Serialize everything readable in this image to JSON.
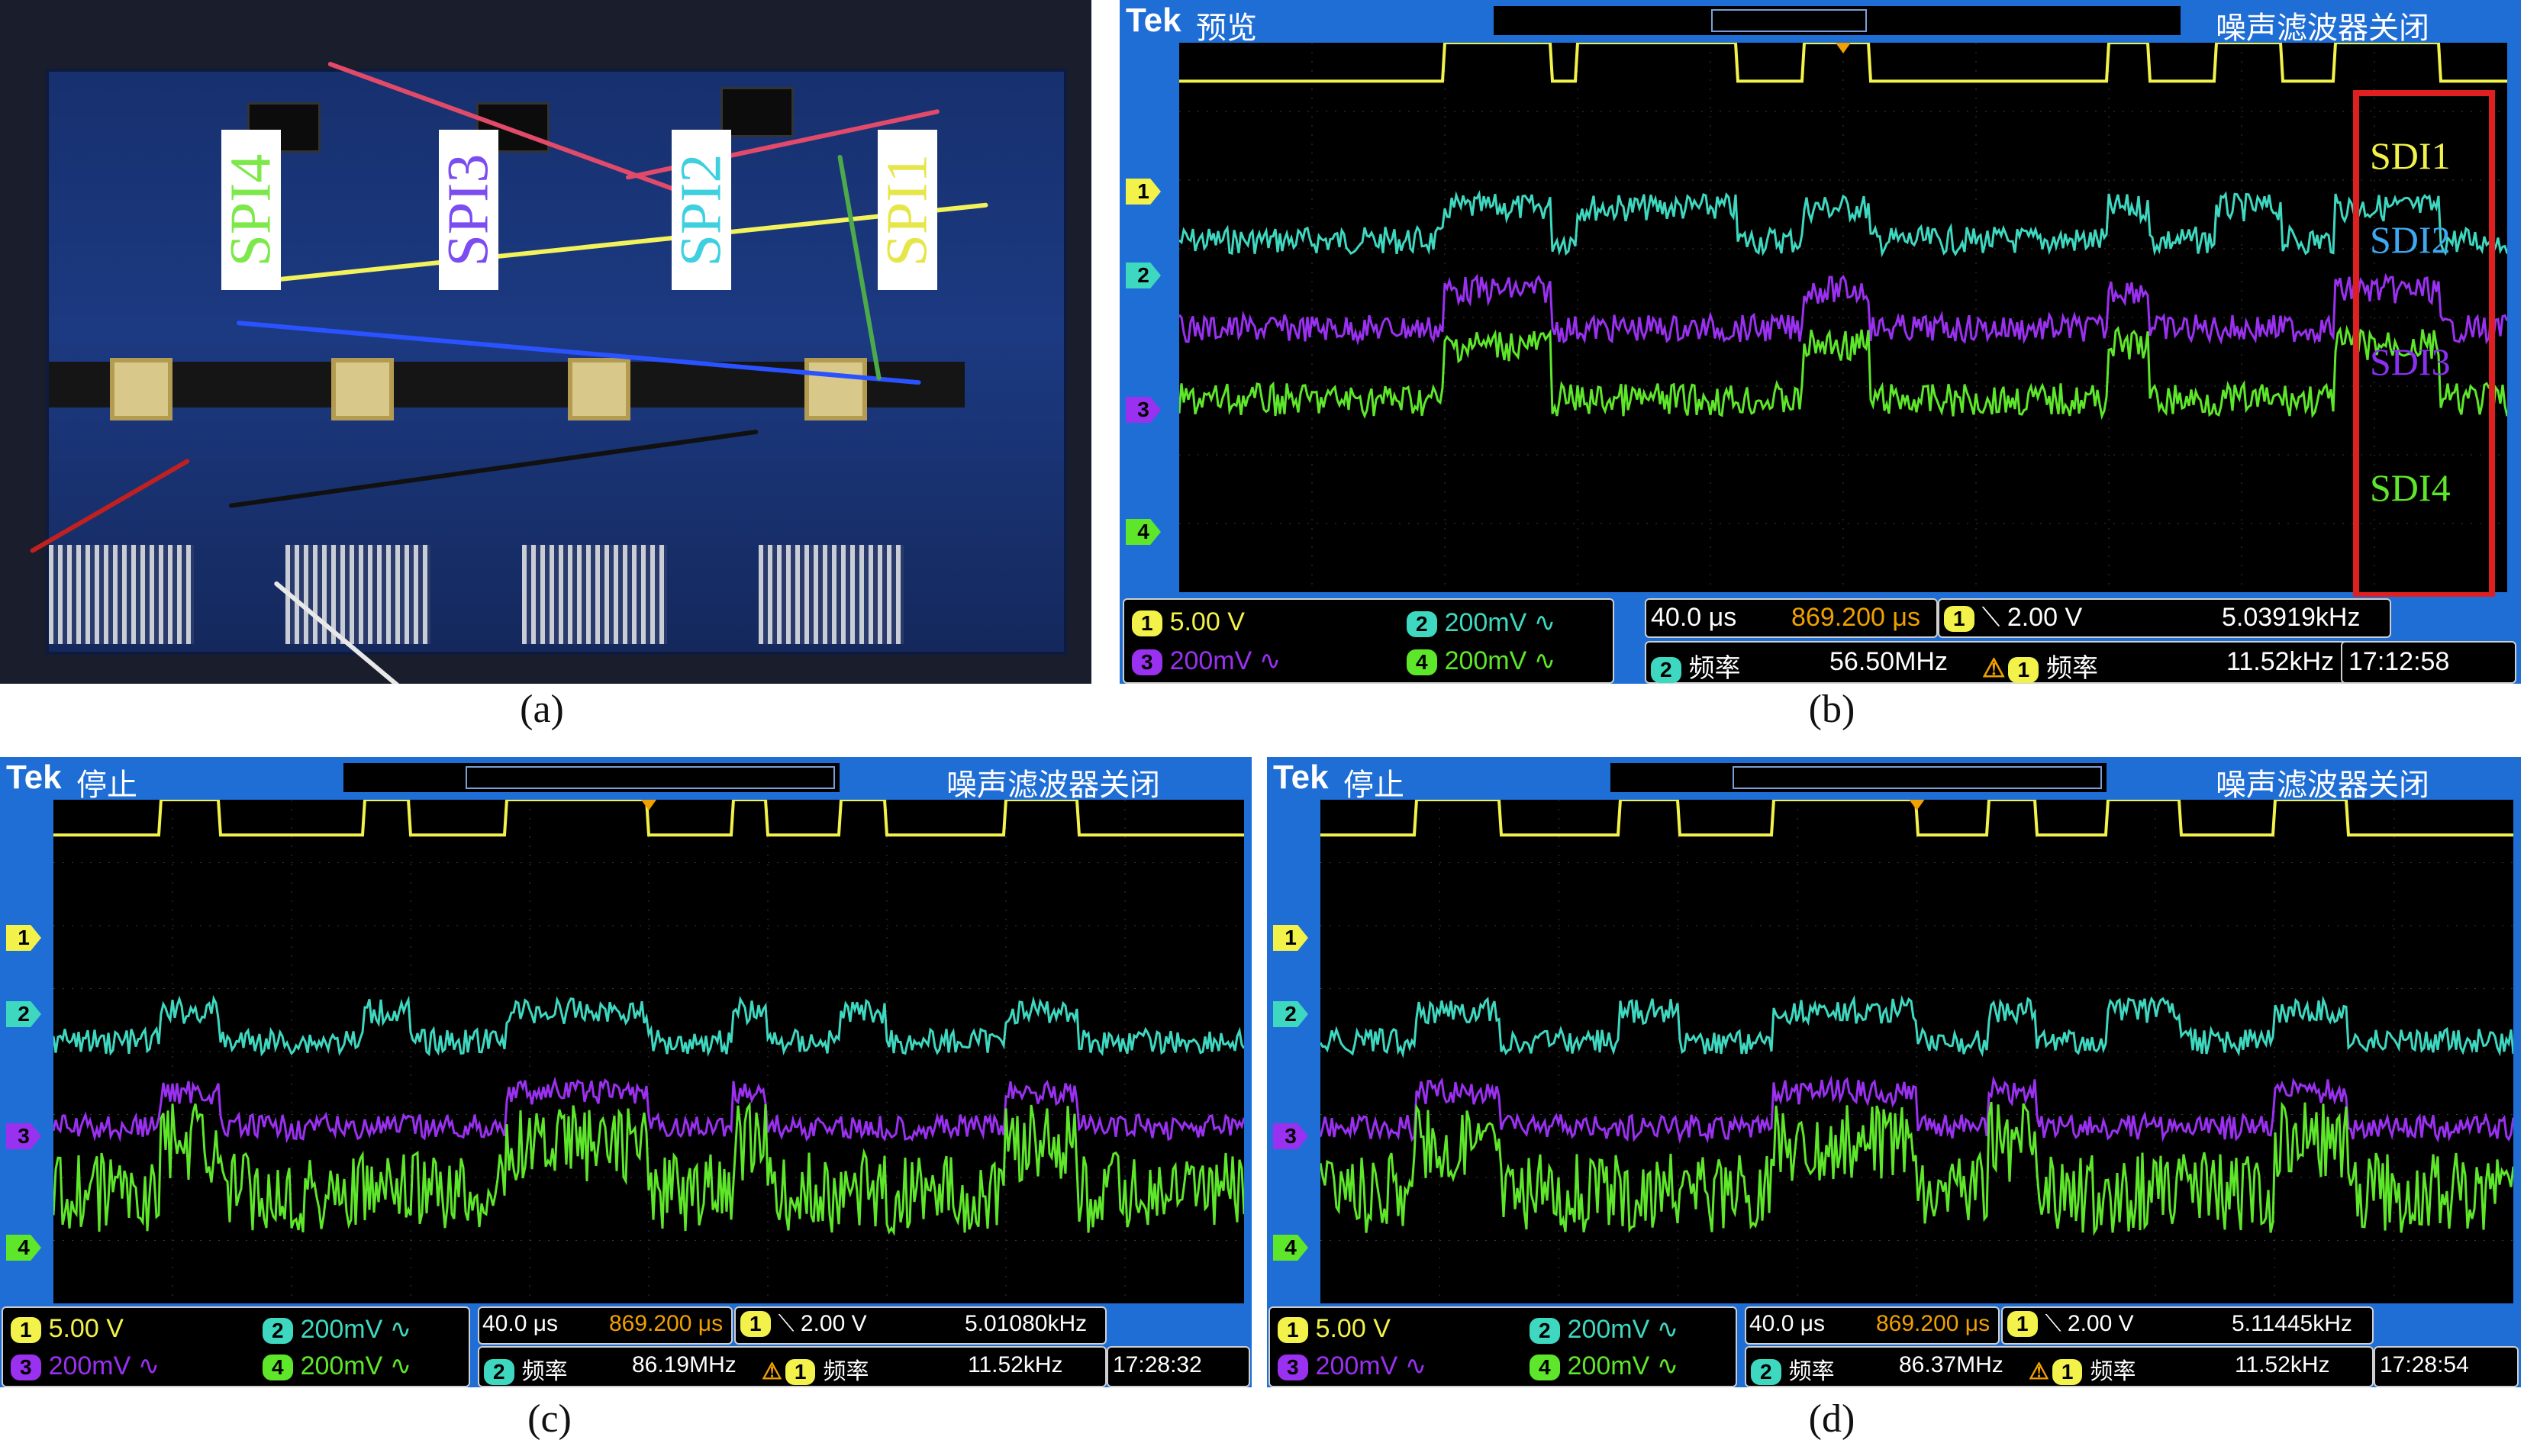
{
  "captions": {
    "a": "(a)",
    "b": "(b)",
    "c": "(c)",
    "d": "(d)"
  },
  "photo": {
    "labels": [
      {
        "text": "SPI4",
        "color": "#7de84a"
      },
      {
        "text": "SPI3",
        "color": "#7b4cf0"
      },
      {
        "text": "SPI2",
        "color": "#3fd0e0"
      },
      {
        "text": "SPI1",
        "color": "#e6e64a"
      }
    ]
  },
  "colors": {
    "ch1": "#f2f24a",
    "ch2": "#3ed8c0",
    "ch3": "#9a30f0",
    "ch4": "#5ee62a",
    "orange": "#f0a000",
    "red_box": "#e02020"
  },
  "scopes": {
    "b": {
      "brand": "Tek",
      "mode": "预览",
      "filter": "噪声滤波器关闭",
      "markers": [
        "1",
        "2",
        "3",
        "4"
      ],
      "sdi_labels": [
        "SDI1",
        "SDI2",
        "SDI3",
        "SDI4"
      ],
      "ch1": {
        "num": "1",
        "scale": "5.00 V"
      },
      "ch2": {
        "num": "2",
        "scale": "200mV ∿"
      },
      "ch3": {
        "num": "3",
        "scale": "200mV ∿"
      },
      "ch4": {
        "num": "4",
        "scale": "200mV ∿"
      },
      "timebase": "40.0 μs",
      "position": "869.200 μs",
      "trigger_ch": "1",
      "trigger_level": "⟍ 2.00 V",
      "trigger_freq": "5.03919kHz",
      "freq_a_ch": "2",
      "freq_a_label": "频率",
      "freq_a_value": "56.50MHz",
      "freq_b_ch": "1",
      "freq_b_label": "频率",
      "freq_b_value": "11.52kHz",
      "time": "17:12:58"
    },
    "c": {
      "brand": "Tek",
      "mode": "停止",
      "filter": "噪声滤波器关闭",
      "markers": [
        "1",
        "2",
        "3",
        "4"
      ],
      "ch1": {
        "num": "1",
        "scale": "5.00 V"
      },
      "ch2": {
        "num": "2",
        "scale": "200mV ∿"
      },
      "ch3": {
        "num": "3",
        "scale": "200mV ∿"
      },
      "ch4": {
        "num": "4",
        "scale": "200mV ∿"
      },
      "timebase": "40.0 μs",
      "position": "869.200 μs",
      "trigger_ch": "1",
      "trigger_level": "⟍ 2.00 V",
      "trigger_freq": "5.01080kHz",
      "freq_a_ch": "2",
      "freq_a_label": "频率",
      "freq_a_value": "86.19MHz",
      "freq_b_ch": "1",
      "freq_b_label": "频率",
      "freq_b_value": "11.52kHz",
      "time": "17:28:32"
    },
    "d": {
      "brand": "Tek",
      "mode": "停止",
      "filter": "噪声滤波器关闭",
      "markers": [
        "1",
        "2",
        "3",
        "4"
      ],
      "ch1": {
        "num": "1",
        "scale": "5.00 V"
      },
      "ch2": {
        "num": "2",
        "scale": "200mV ∿"
      },
      "ch3": {
        "num": "3",
        "scale": "200mV ∿"
      },
      "ch4": {
        "num": "4",
        "scale": "200mV ∿"
      },
      "timebase": "40.0 μs",
      "position": "869.200 μs",
      "trigger_ch": "1",
      "trigger_level": "⟍ 2.00 V",
      "trigger_freq": "5.11445kHz",
      "freq_a_ch": "2",
      "freq_a_label": "频率",
      "freq_a_value": "86.37MHz",
      "freq_b_ch": "1",
      "freq_b_label": "频率",
      "freq_b_value": "11.52kHz",
      "time": "17:28:54"
    }
  }
}
